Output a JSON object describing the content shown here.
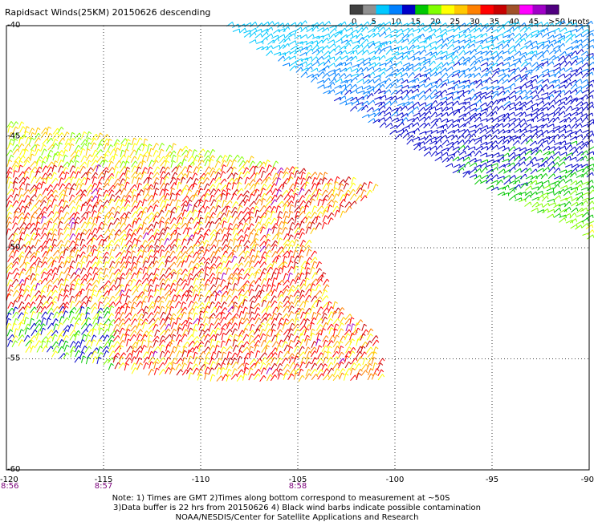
{
  "title": "Rapidsact Winds(25KM) 20150626 descending",
  "colorbar": {
    "labels": [
      "0",
      "5",
      "10",
      "15",
      "20",
      "25",
      "30",
      "35",
      "40",
      "45",
      ">50 knots"
    ],
    "colors": [
      "#404040",
      "#909090",
      "#00c8ff",
      "#0080ff",
      "#0000c8",
      "#00c800",
      "#80ff00",
      "#ffff00",
      "#ffc800",
      "#ff8000",
      "#ff0000",
      "#c80000",
      "#a05028",
      "#ff00ff",
      "#a000c8",
      "#500080"
    ]
  },
  "axes": {
    "x_ticks": [
      "-120",
      "-115",
      "-110",
      "-105",
      "-100",
      "-95",
      "-90"
    ],
    "y_ticks": [
      "-40",
      "-45",
      "-50",
      "-55",
      "-60"
    ],
    "lon_range": [
      -120,
      -90
    ],
    "lat_range": [
      -60,
      -40
    ],
    "time_labels": [
      {
        "text": "8:56",
        "lon": -120
      },
      {
        "text": "8:57",
        "lon": -115
      },
      {
        "text": "8:58",
        "lon": -105
      }
    ]
  },
  "notes": {
    "line1": "Note: 1) Times are GMT 2)Times along bottom correspond to measurement at ~50S",
    "line2": "3)Data buffer is 22 hrs from 20150626 4) Black wind barbs indicate possible contamination",
    "line3": "NOAA/NESDIS/Center for Satellite Applications and Research"
  }
}
